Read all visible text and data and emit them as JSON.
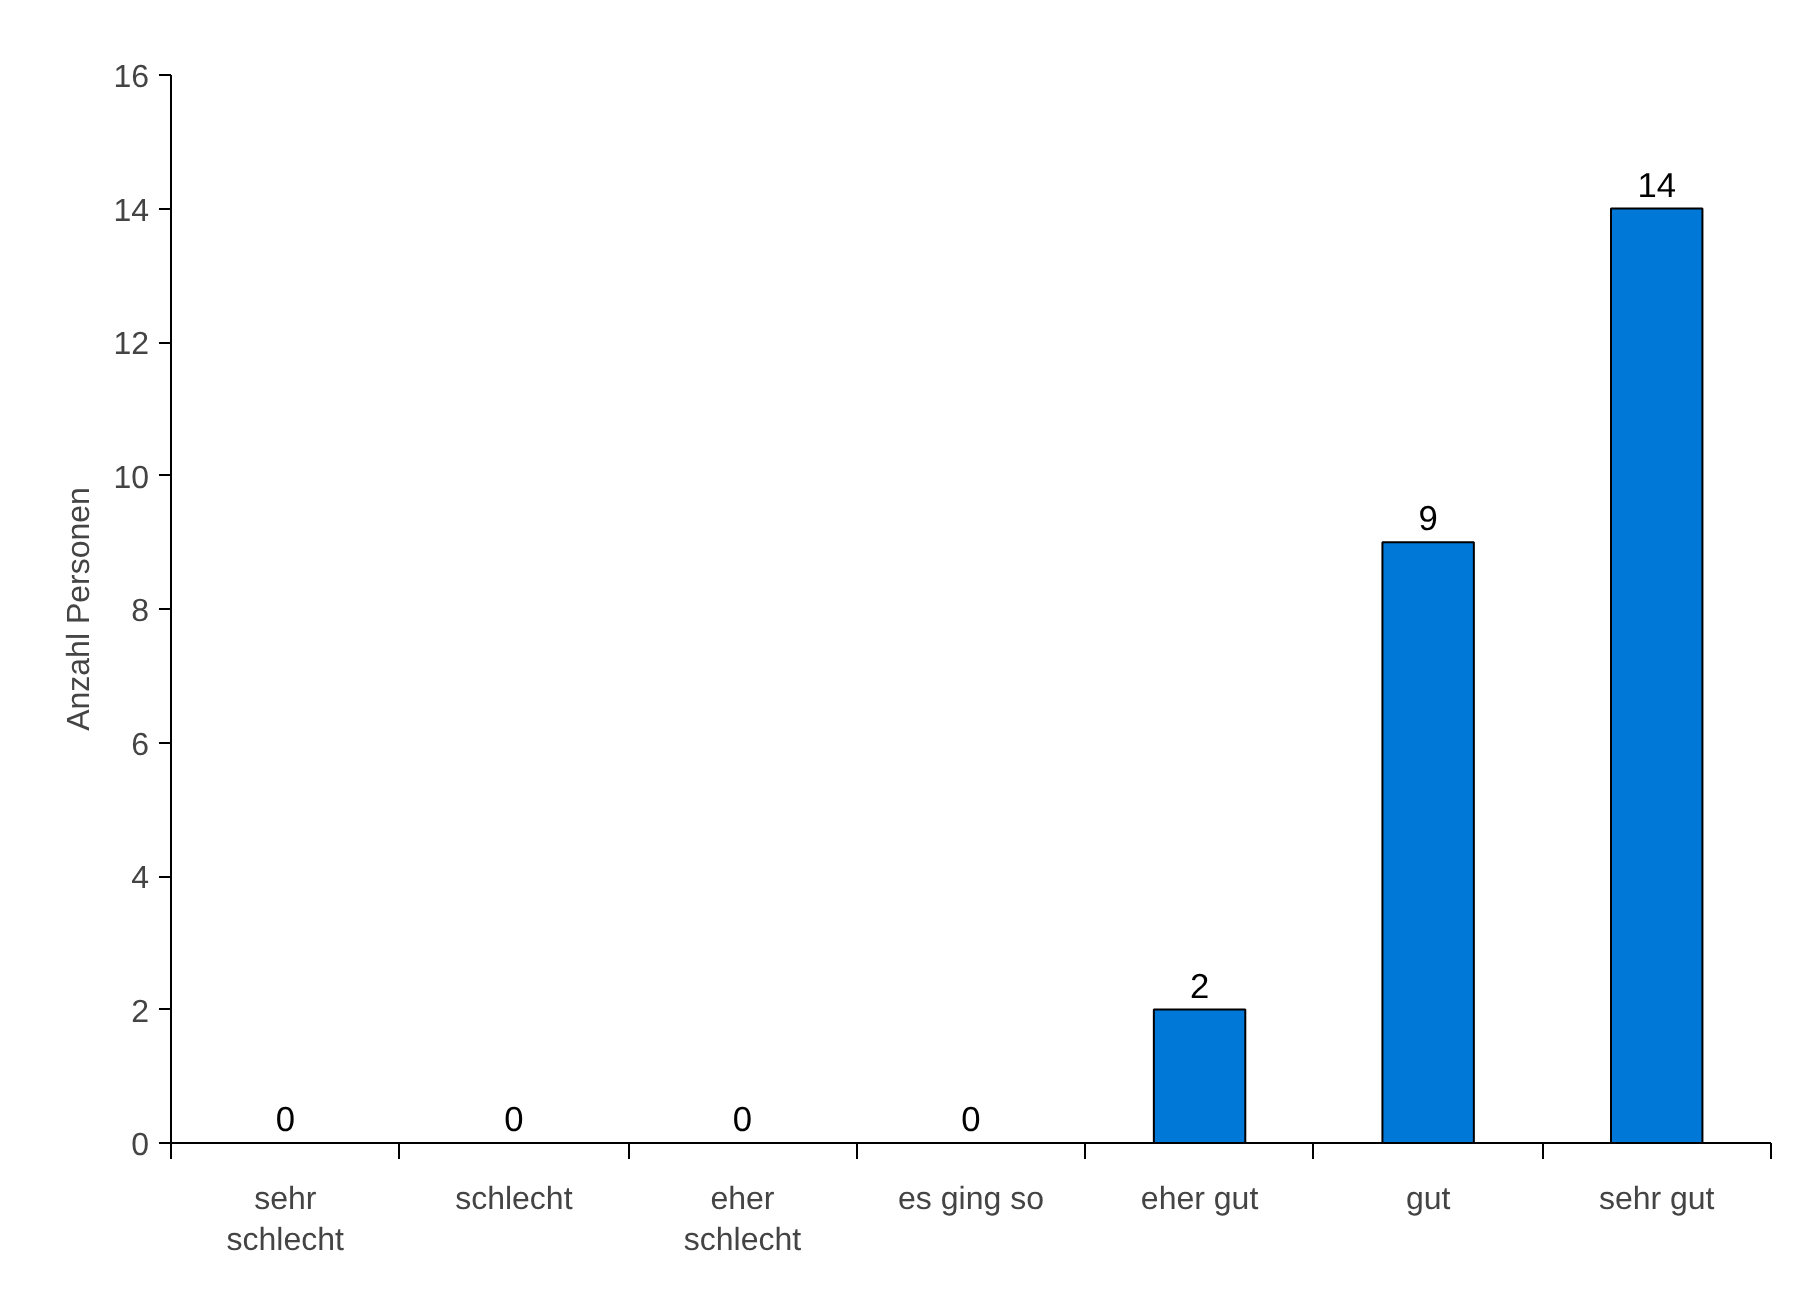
{
  "chart_data": {
    "type": "bar",
    "ylabel": "Anzahl Personen",
    "categories": [
      "sehr schlecht",
      "schlecht",
      "eher schlecht",
      "es ging so",
      "eher gut",
      "gut",
      "sehr gut"
    ],
    "values": [
      0,
      0,
      0,
      0,
      2,
      9,
      14
    ],
    "color": "#0078d7",
    "ylim": [
      0,
      16
    ],
    "yticks": [
      0,
      2,
      4,
      6,
      8,
      10,
      12,
      14,
      16
    ],
    "grid": false,
    "data_labels": true
  }
}
